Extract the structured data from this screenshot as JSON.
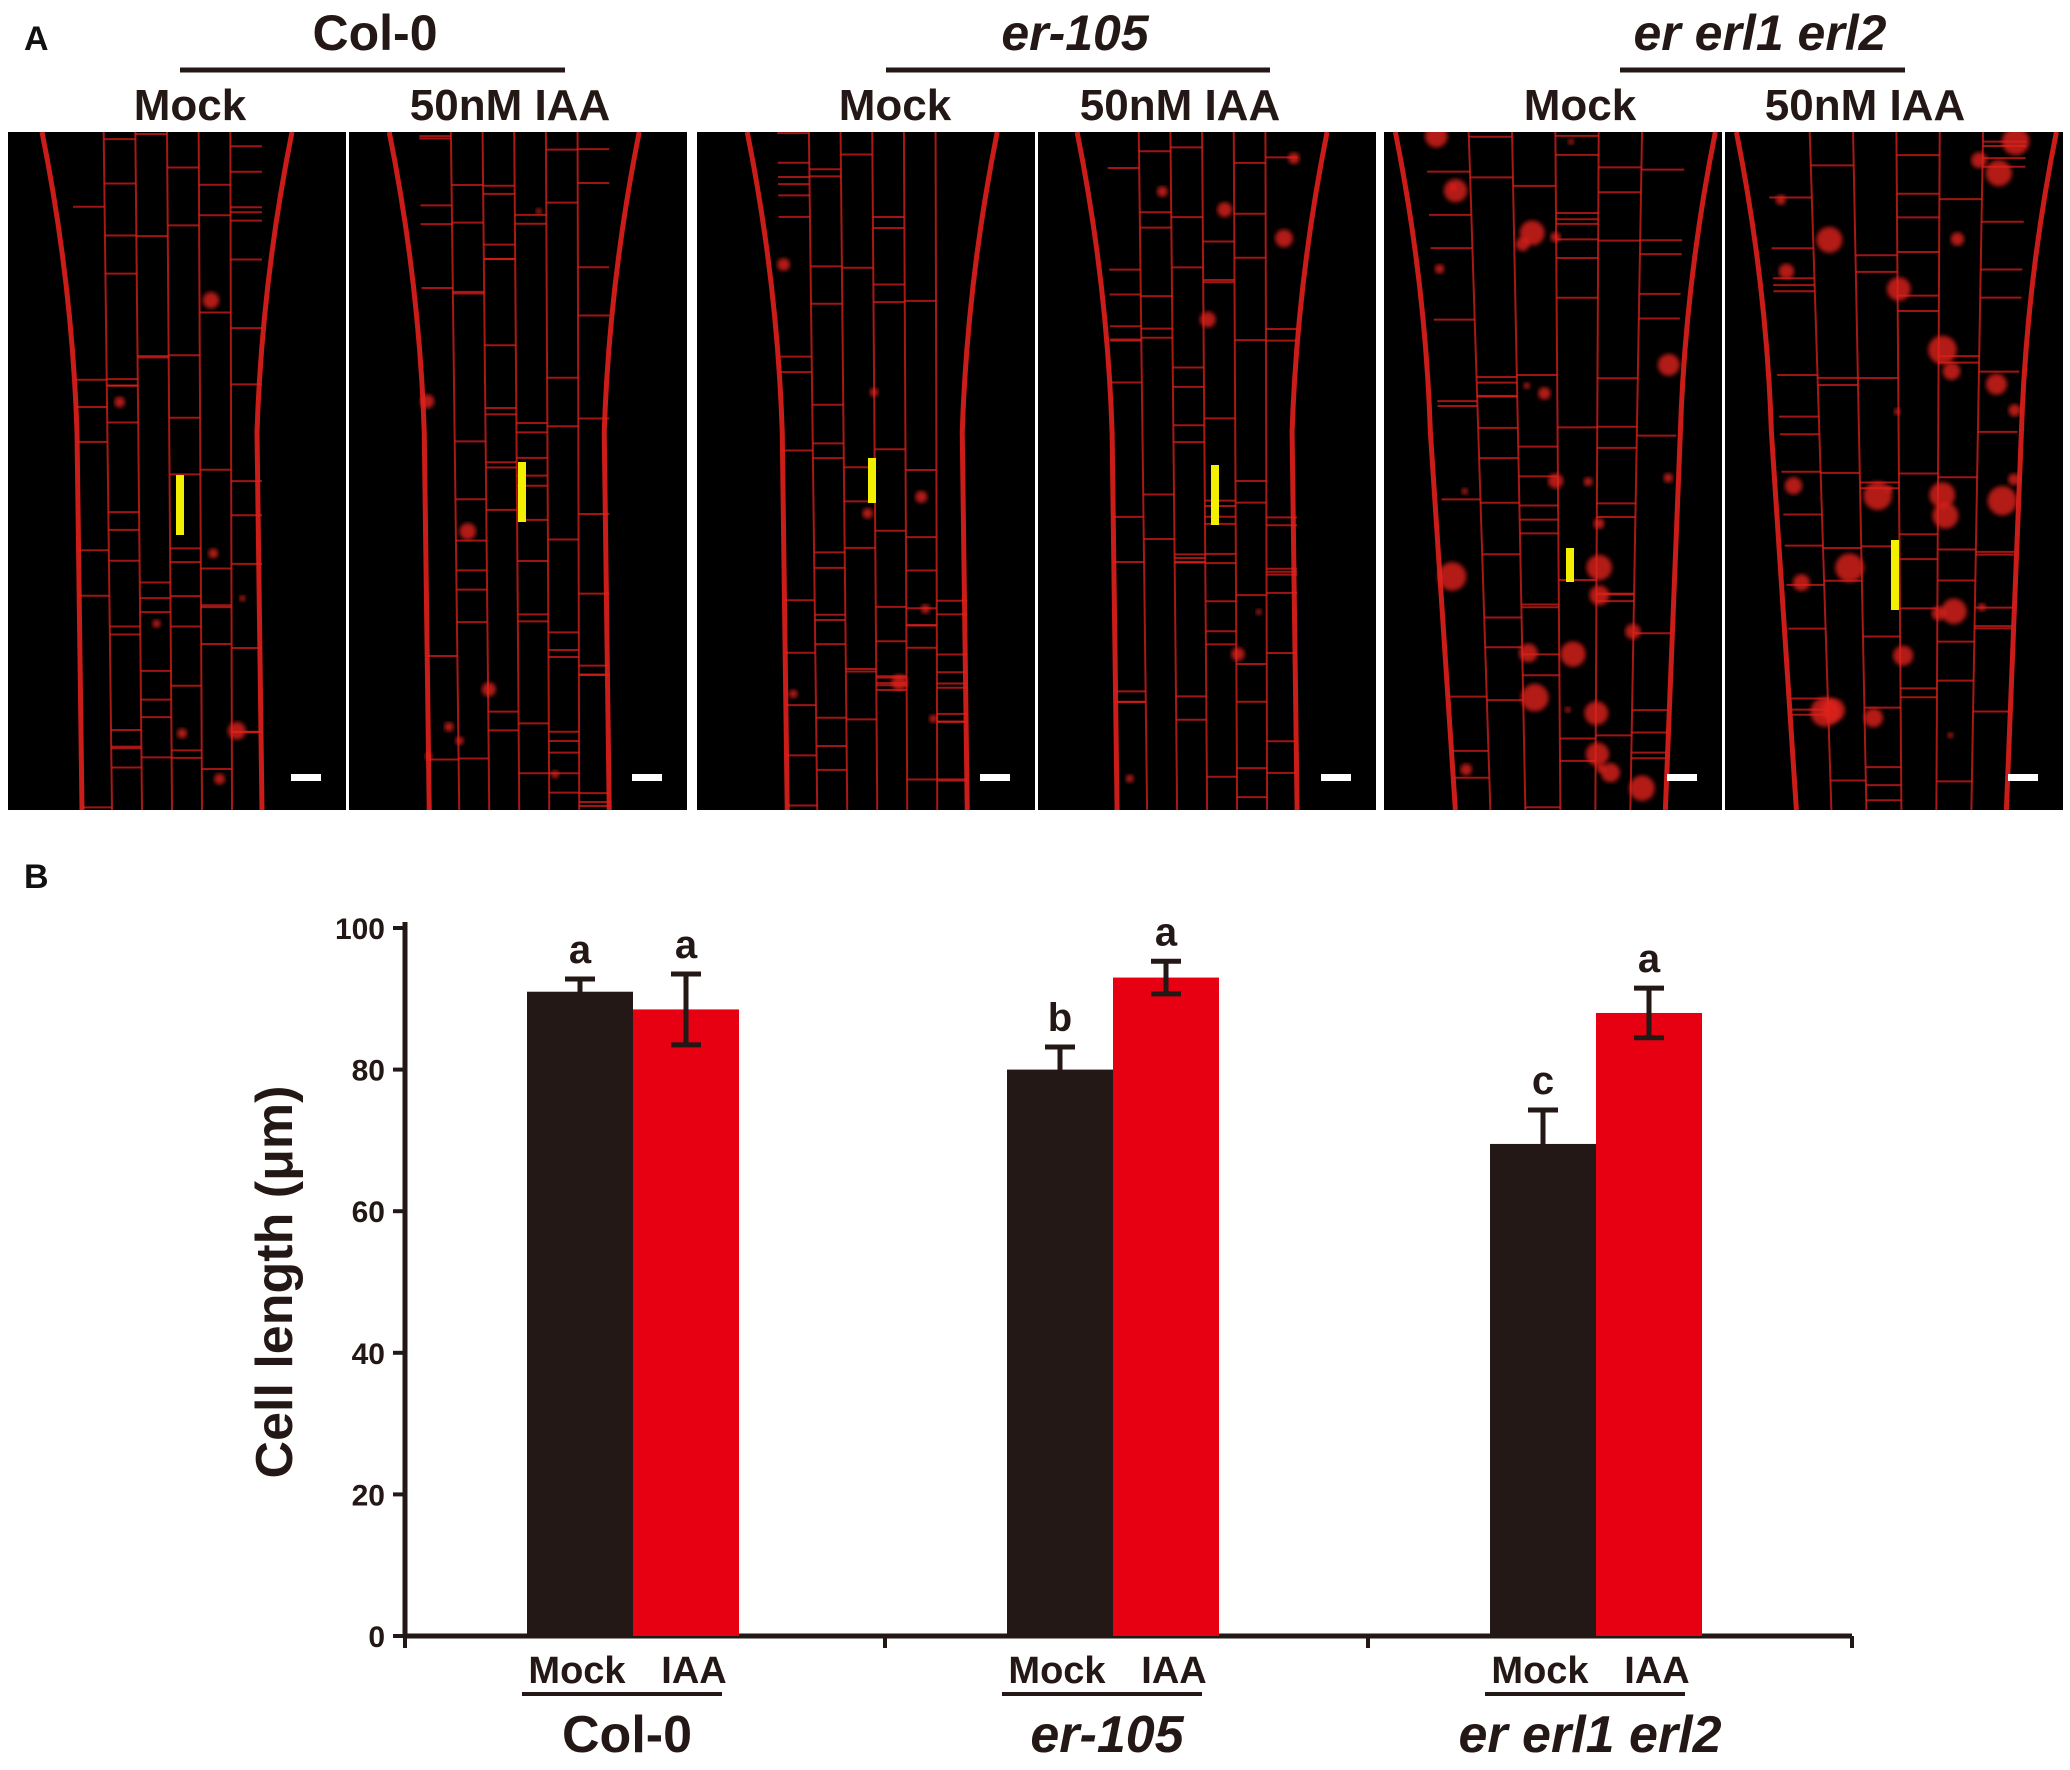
{
  "panel_a": {
    "label": "A",
    "groups": [
      {
        "name": "Col-0",
        "italic": false,
        "treatments": [
          "Mock",
          "50nM IAA"
        ]
      },
      {
        "name": "er-105",
        "italic": true,
        "treatments": [
          "Mock",
          "50nM IAA"
        ]
      },
      {
        "name": "er erl1 erl2",
        "italic": true,
        "treatments": [
          "Mock",
          "50nM IAA"
        ]
      }
    ]
  },
  "panel_b": {
    "label": "B"
  },
  "colors": {
    "mock": "#231815",
    "iaa": "#e60012",
    "root_stain": "#e0201c",
    "marker": "#f2ef00"
  },
  "chart_data": {
    "type": "bar",
    "ylabel": "Cell  length (μm)",
    "ylim": [
      0,
      100
    ],
    "yticks": [
      0,
      20,
      40,
      60,
      80,
      100
    ],
    "categories": [
      "Col-0",
      "er-105",
      "er erl1 erl2"
    ],
    "italic_categories": [
      false,
      true,
      true
    ],
    "bar_labels": [
      "Mock",
      "IAA"
    ],
    "series": [
      {
        "name": "Mock",
        "values": [
          91,
          80,
          69.5
        ],
        "errors": [
          1.8,
          3.2,
          4.8
        ],
        "letters": [
          "a",
          "b",
          "c"
        ]
      },
      {
        "name": "IAA",
        "values": [
          88.5,
          93,
          88
        ],
        "errors": [
          5,
          2.3,
          3.5
        ],
        "letters": [
          "a",
          "a",
          "a"
        ]
      }
    ]
  }
}
